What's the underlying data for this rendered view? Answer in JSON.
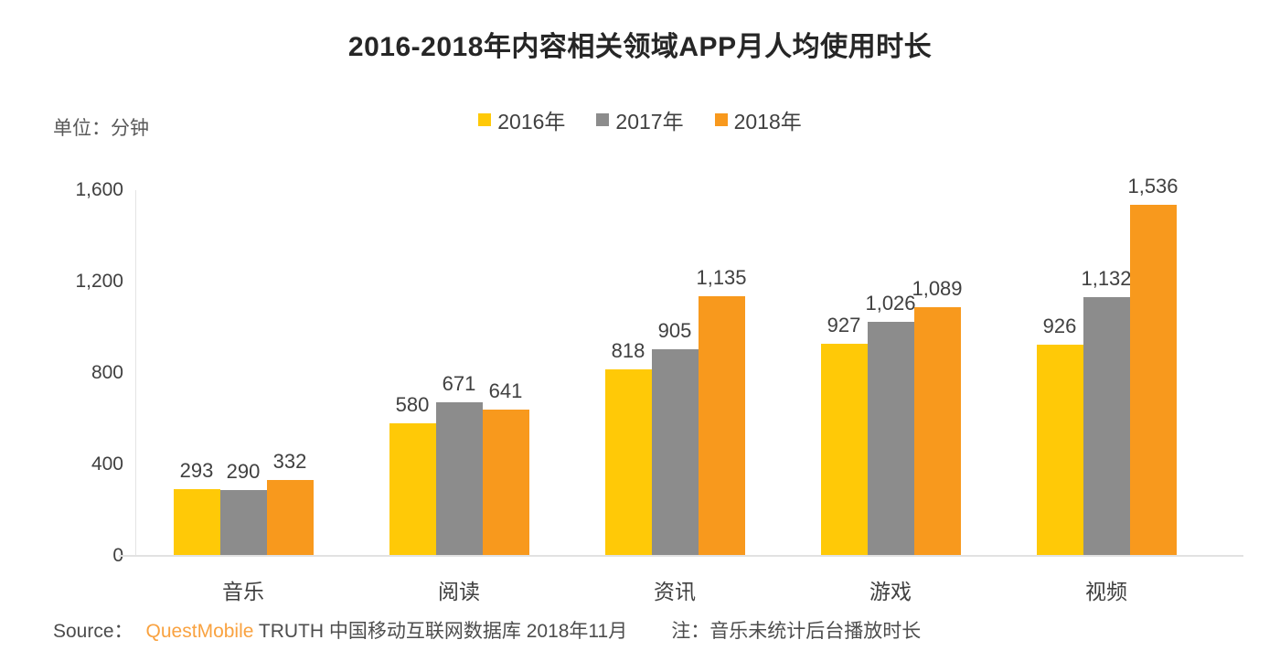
{
  "title": "2016-2018年内容相关领域APP月人均使用时长",
  "unit_label": "单位：分钟",
  "footer": {
    "source_prefix": "Source：",
    "source_brand": "QuestMobile",
    "source_rest": " TRUTH 中国移动互联网数据库 2018年11月",
    "note": "注：音乐未统计后台播放时长"
  },
  "colors": {
    "series_2016": "#FFC907",
    "series_2017": "#8C8C8C",
    "series_2018": "#F8991D",
    "axis_line": "#E2E2E2",
    "text_dark": "#404040",
    "text_muted": "#595959",
    "brand_orange": "#F9A240"
  },
  "chart_data": {
    "type": "bar",
    "categories": [
      "音乐",
      "阅读",
      "资讯",
      "游戏",
      "视频"
    ],
    "series": [
      {
        "name": "2016年",
        "color": "#FFC907",
        "values": [
          293,
          580,
          818,
          927,
          926
        ]
      },
      {
        "name": "2017年",
        "color": "#8C8C8C",
        "values": [
          290,
          671,
          905,
          1026,
          1132
        ]
      },
      {
        "name": "2018年",
        "color": "#F8991D",
        "values": [
          332,
          641,
          1135,
          1089,
          1536
        ]
      }
    ],
    "title": "2016-2018年内容相关领域APP月人均使用时长",
    "ylabel": "单位：分钟",
    "ylim": [
      0,
      1600
    ],
    "yticks": [
      0,
      400,
      800,
      1200,
      1600
    ],
    "grid": false,
    "legend_position": "top"
  }
}
